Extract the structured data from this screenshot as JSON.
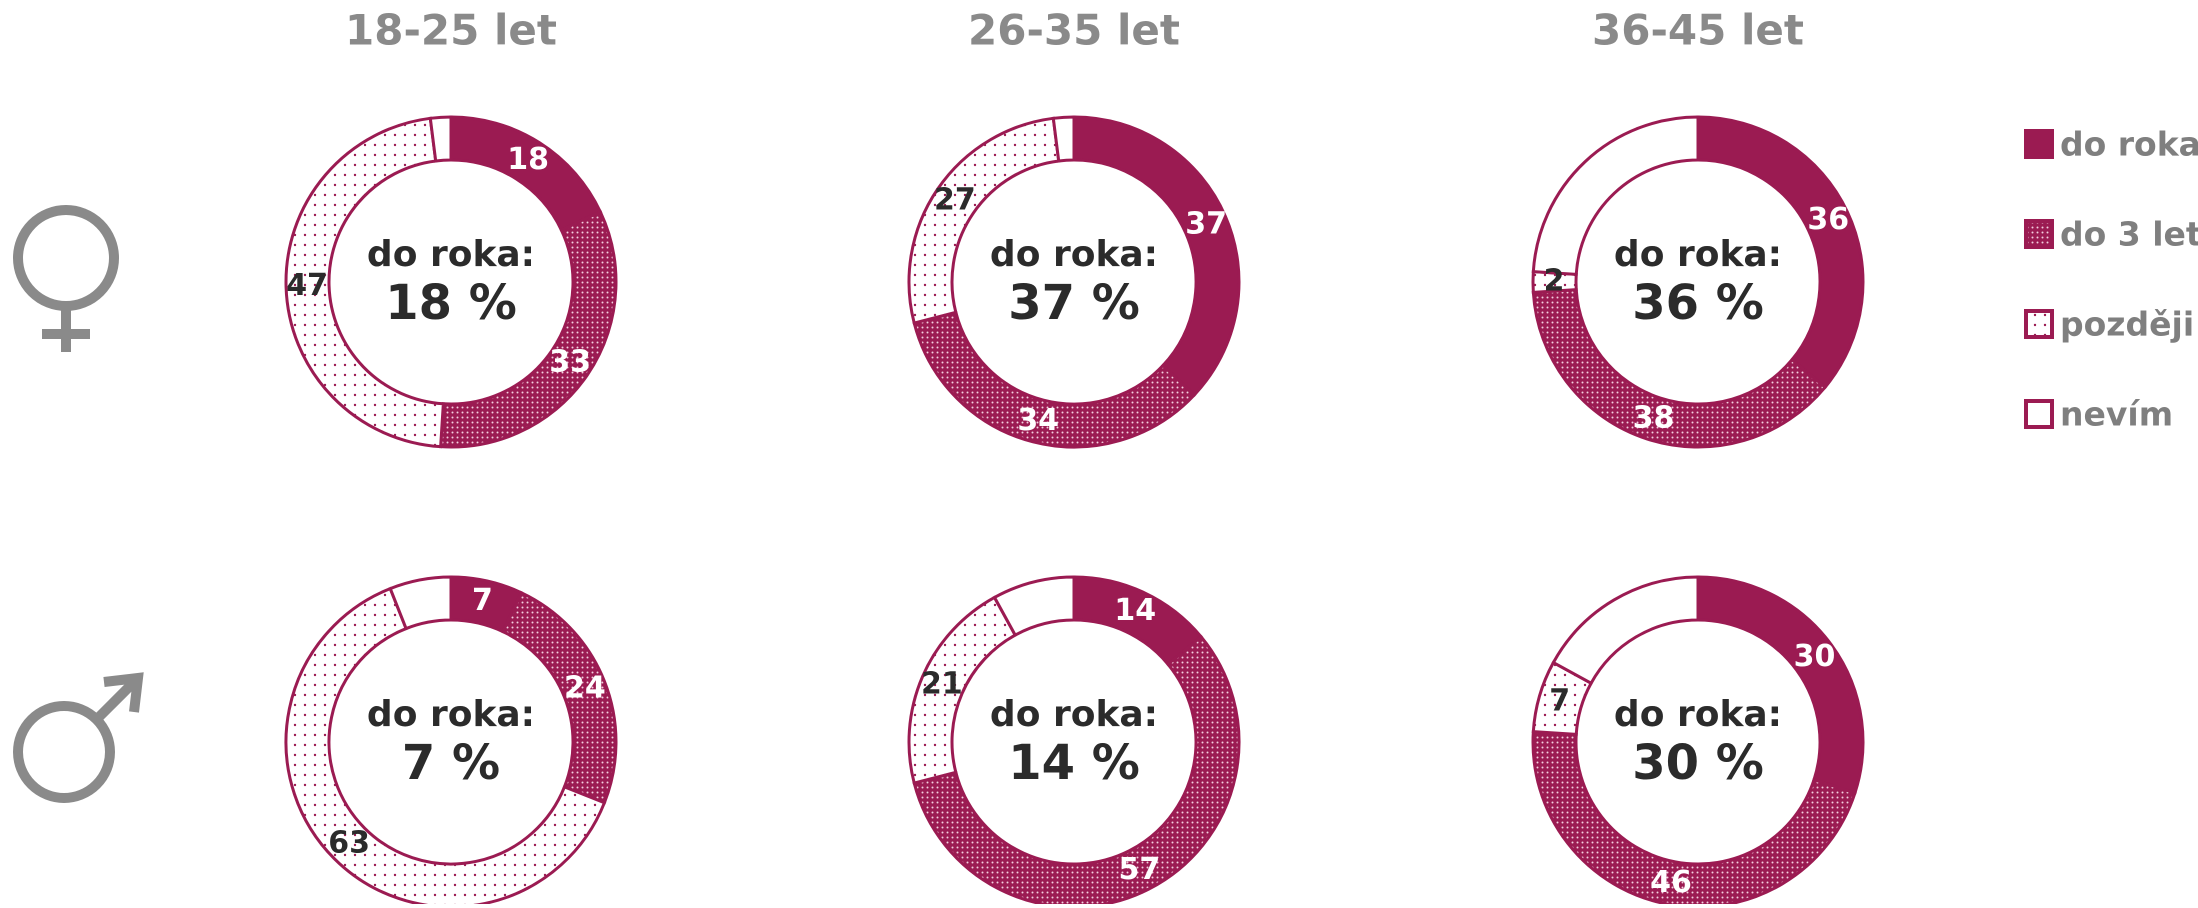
{
  "chart_data": {
    "type": "donut",
    "color": "#9b1b52",
    "columns": [
      "18-25 let",
      "26-35 let",
      "36-45 let"
    ],
    "series": [
      {
        "name": "do roka",
        "pattern": "solid"
      },
      {
        "name": "do 3 let",
        "pattern": "dense"
      },
      {
        "name": "později",
        "pattern": "sparse"
      },
      {
        "name": "nevím",
        "pattern": "none"
      }
    ],
    "rows": [
      {
        "charts": [
          {
            "values": [
              18,
              33,
              47,
              2
            ],
            "center_title": "do roka:",
            "center_label": "18 %"
          },
          {
            "values": [
              37,
              34,
              27,
              2
            ],
            "center_title": "do roka:",
            "center_label": "37 %"
          },
          {
            "values": [
              36,
              38,
              2,
              24
            ],
            "center_title": "do roka:",
            "center_label": "36 %"
          }
        ]
      },
      {
        "charts": [
          {
            "values": [
              7,
              24,
              63,
              6
            ],
            "center_title": "do roka:",
            "center_label": "7 %"
          },
          {
            "values": [
              14,
              57,
              21,
              8
            ],
            "center_title": "do roka:",
            "center_label": "14 %"
          },
          {
            "values": [
              30,
              46,
              7,
              17
            ],
            "center_title": "do roka:",
            "center_label": "30 %"
          }
        ]
      }
    ]
  }
}
